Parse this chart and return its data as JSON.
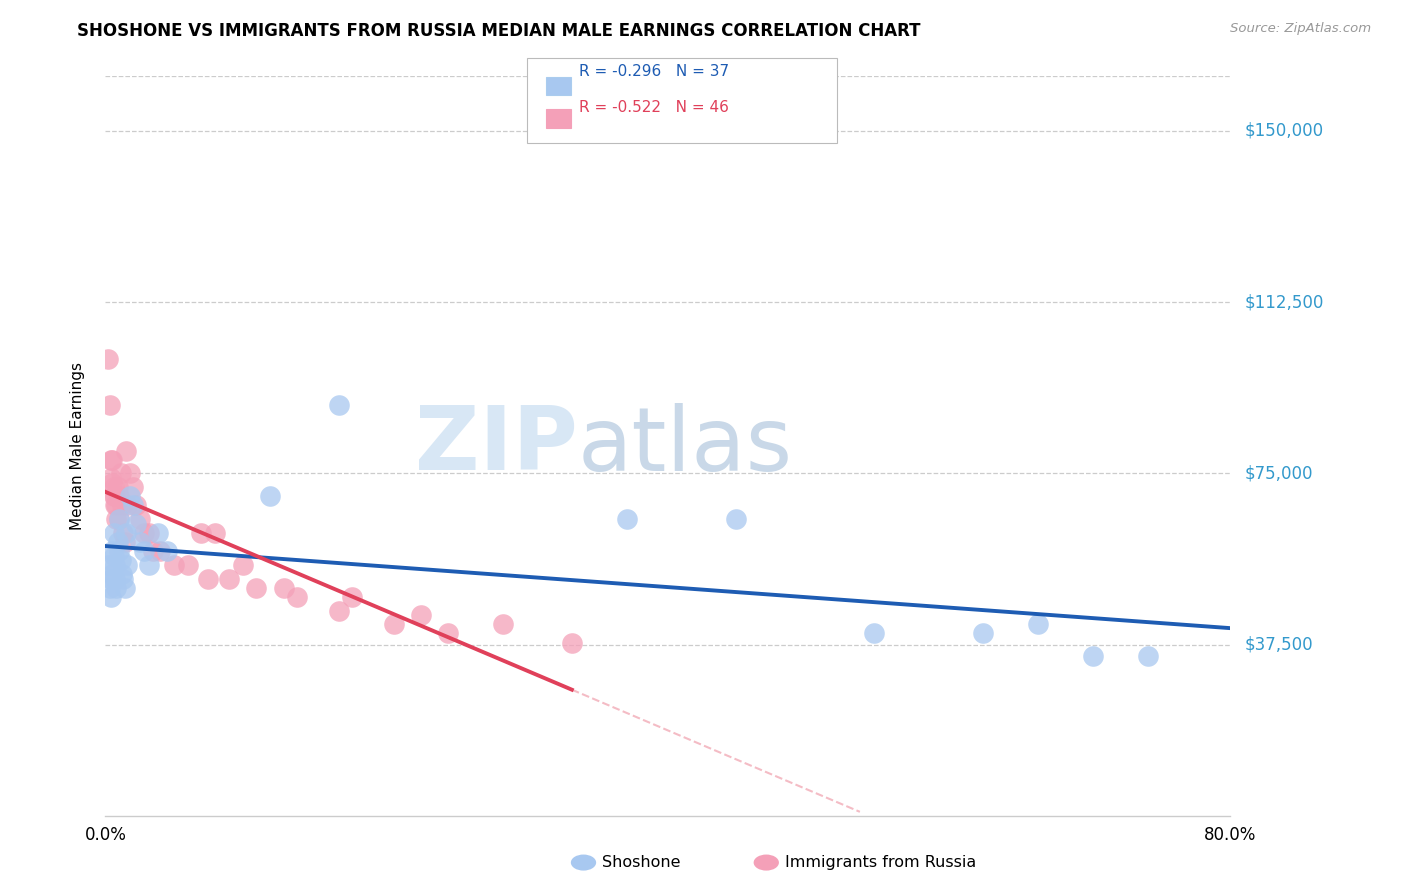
{
  "title": "SHOSHONE VS IMMIGRANTS FROM RUSSIA MEDIAN MALE EARNINGS CORRELATION CHART",
  "source": "Source: ZipAtlas.com",
  "ylabel": "Median Male Earnings",
  "ytick_labels": [
    "$37,500",
    "$75,000",
    "$112,500",
    "$150,000"
  ],
  "ytick_values": [
    37500,
    75000,
    112500,
    150000
  ],
  "ylim": [
    0,
    162000
  ],
  "xlim": [
    0.0,
    0.82
  ],
  "watermark_zip": "ZIP",
  "watermark_atlas": "atlas",
  "shoshone_R": "-0.296",
  "shoshone_N": "37",
  "russia_R": "-0.522",
  "russia_N": "46",
  "shoshone_color": "#A8C8F0",
  "russia_color": "#F4A0B8",
  "shoshone_line_color": "#1E5CB3",
  "russia_line_color": "#E0405A",
  "legend_label_1": "Shoshone",
  "legend_label_2": "Immigrants from Russia",
  "shoshone_x": [
    0.002,
    0.003,
    0.004,
    0.004,
    0.005,
    0.005,
    0.006,
    0.006,
    0.007,
    0.007,
    0.008,
    0.009,
    0.01,
    0.01,
    0.011,
    0.012,
    0.013,
    0.014,
    0.015,
    0.016,
    0.018,
    0.02,
    0.022,
    0.025,
    0.028,
    0.032,
    0.038,
    0.045,
    0.12,
    0.17,
    0.38,
    0.46,
    0.56,
    0.64,
    0.68,
    0.72,
    0.76
  ],
  "shoshone_y": [
    55000,
    50000,
    52000,
    48000,
    58000,
    53000,
    62000,
    57000,
    55000,
    52000,
    50000,
    60000,
    65000,
    58000,
    56000,
    53000,
    52000,
    50000,
    62000,
    55000,
    70000,
    68000,
    64000,
    60000,
    58000,
    55000,
    62000,
    58000,
    70000,
    90000,
    65000,
    65000,
    40000,
    40000,
    42000,
    35000,
    35000
  ],
  "russia_x": [
    0.002,
    0.003,
    0.004,
    0.004,
    0.005,
    0.005,
    0.006,
    0.006,
    0.007,
    0.007,
    0.008,
    0.008,
    0.009,
    0.01,
    0.01,
    0.011,
    0.012,
    0.013,
    0.014,
    0.015,
    0.016,
    0.018,
    0.02,
    0.022,
    0.025,
    0.028,
    0.032,
    0.035,
    0.04,
    0.05,
    0.06,
    0.075,
    0.09,
    0.11,
    0.14,
    0.17,
    0.21,
    0.25,
    0.07,
    0.08,
    0.1,
    0.13,
    0.18,
    0.23,
    0.29,
    0.34
  ],
  "russia_y": [
    100000,
    90000,
    78000,
    74000,
    78000,
    73000,
    72000,
    70000,
    70000,
    68000,
    68000,
    65000,
    72000,
    65000,
    70000,
    75000,
    68000,
    62000,
    60000,
    80000,
    68000,
    75000,
    72000,
    68000,
    65000,
    62000,
    62000,
    58000,
    58000,
    55000,
    55000,
    52000,
    52000,
    50000,
    48000,
    45000,
    42000,
    40000,
    62000,
    62000,
    55000,
    50000,
    48000,
    44000,
    42000,
    38000
  ]
}
